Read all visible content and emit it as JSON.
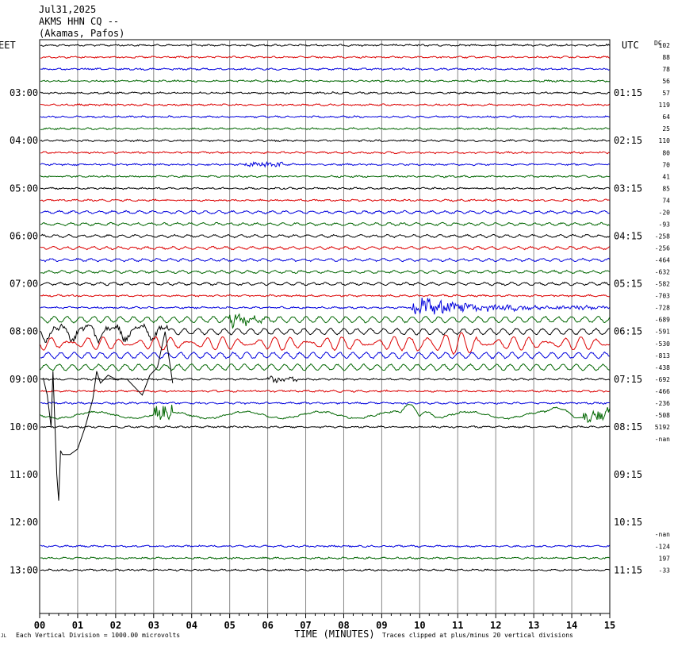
{
  "header": {
    "date": "Jul31,2025",
    "station": "AKMS HHN CQ --",
    "location": "(Akamas, Pafos)"
  },
  "chart_data": {
    "type": "line",
    "title": "",
    "left_timezone": "EET",
    "right_timezone": "UTC",
    "dc_label": "DC",
    "xlabel": "TIME (MINUTES)",
    "xlim": [
      0,
      15
    ],
    "x_ticks": [
      "00",
      "01",
      "02",
      "03",
      "04",
      "05",
      "06",
      "07",
      "08",
      "09",
      "10",
      "11",
      "12",
      "13",
      "14",
      "15"
    ],
    "left_time_labels": [
      {
        "row": 4,
        "label": "03:00"
      },
      {
        "row": 8,
        "label": "04:00"
      },
      {
        "row": 12,
        "label": "05:00"
      },
      {
        "row": 16,
        "label": "06:00"
      },
      {
        "row": 20,
        "label": "07:00"
      },
      {
        "row": 24,
        "label": "08:00"
      },
      {
        "row": 28,
        "label": "09:00"
      },
      {
        "row": 32,
        "label": "10:00"
      },
      {
        "row": 36,
        "label": "11:00"
      },
      {
        "row": 40,
        "label": "12:00"
      },
      {
        "row": 44,
        "label": "13:00"
      }
    ],
    "right_time_labels": [
      {
        "row": 4,
        "label": "01:15"
      },
      {
        "row": 8,
        "label": "02:15"
      },
      {
        "row": 12,
        "label": "03:15"
      },
      {
        "row": 16,
        "label": "04:15"
      },
      {
        "row": 20,
        "label": "05:15"
      },
      {
        "row": 24,
        "label": "06:15"
      },
      {
        "row": 28,
        "label": "07:15"
      },
      {
        "row": 32,
        "label": "08:15"
      },
      {
        "row": 36,
        "label": "09:15"
      },
      {
        "row": 40,
        "label": "10:15"
      },
      {
        "row": 44,
        "label": "11:15"
      }
    ],
    "dc_values": [
      "102",
      "88",
      "78",
      "56",
      "57",
      "119",
      "64",
      "25",
      "110",
      "80",
      "70",
      "41",
      "85",
      "74",
      "-20",
      "-93",
      "-258",
      "-256",
      "-464",
      "-632",
      "-582",
      "-703",
      "-728",
      "-689",
      "-591",
      "-530",
      "-813",
      "-438",
      "-692",
      "-466",
      "-236",
      "-508",
      "5192",
      "-nan",
      "",
      "",
      "",
      "",
      "",
      "",
      "",
      "-nan",
      "-124",
      "197",
      "-33"
    ],
    "footer": {
      "left_note": "Each Vertical Division = 1000.00 microvolts",
      "right_note": "Traces clipped at plus/minus 20 vertical divisions",
      "corner_mark": "JL"
    },
    "trace_colors": [
      "#000000",
      "#dd0000",
      "#0000dd",
      "#006600"
    ],
    "grid": true
  }
}
